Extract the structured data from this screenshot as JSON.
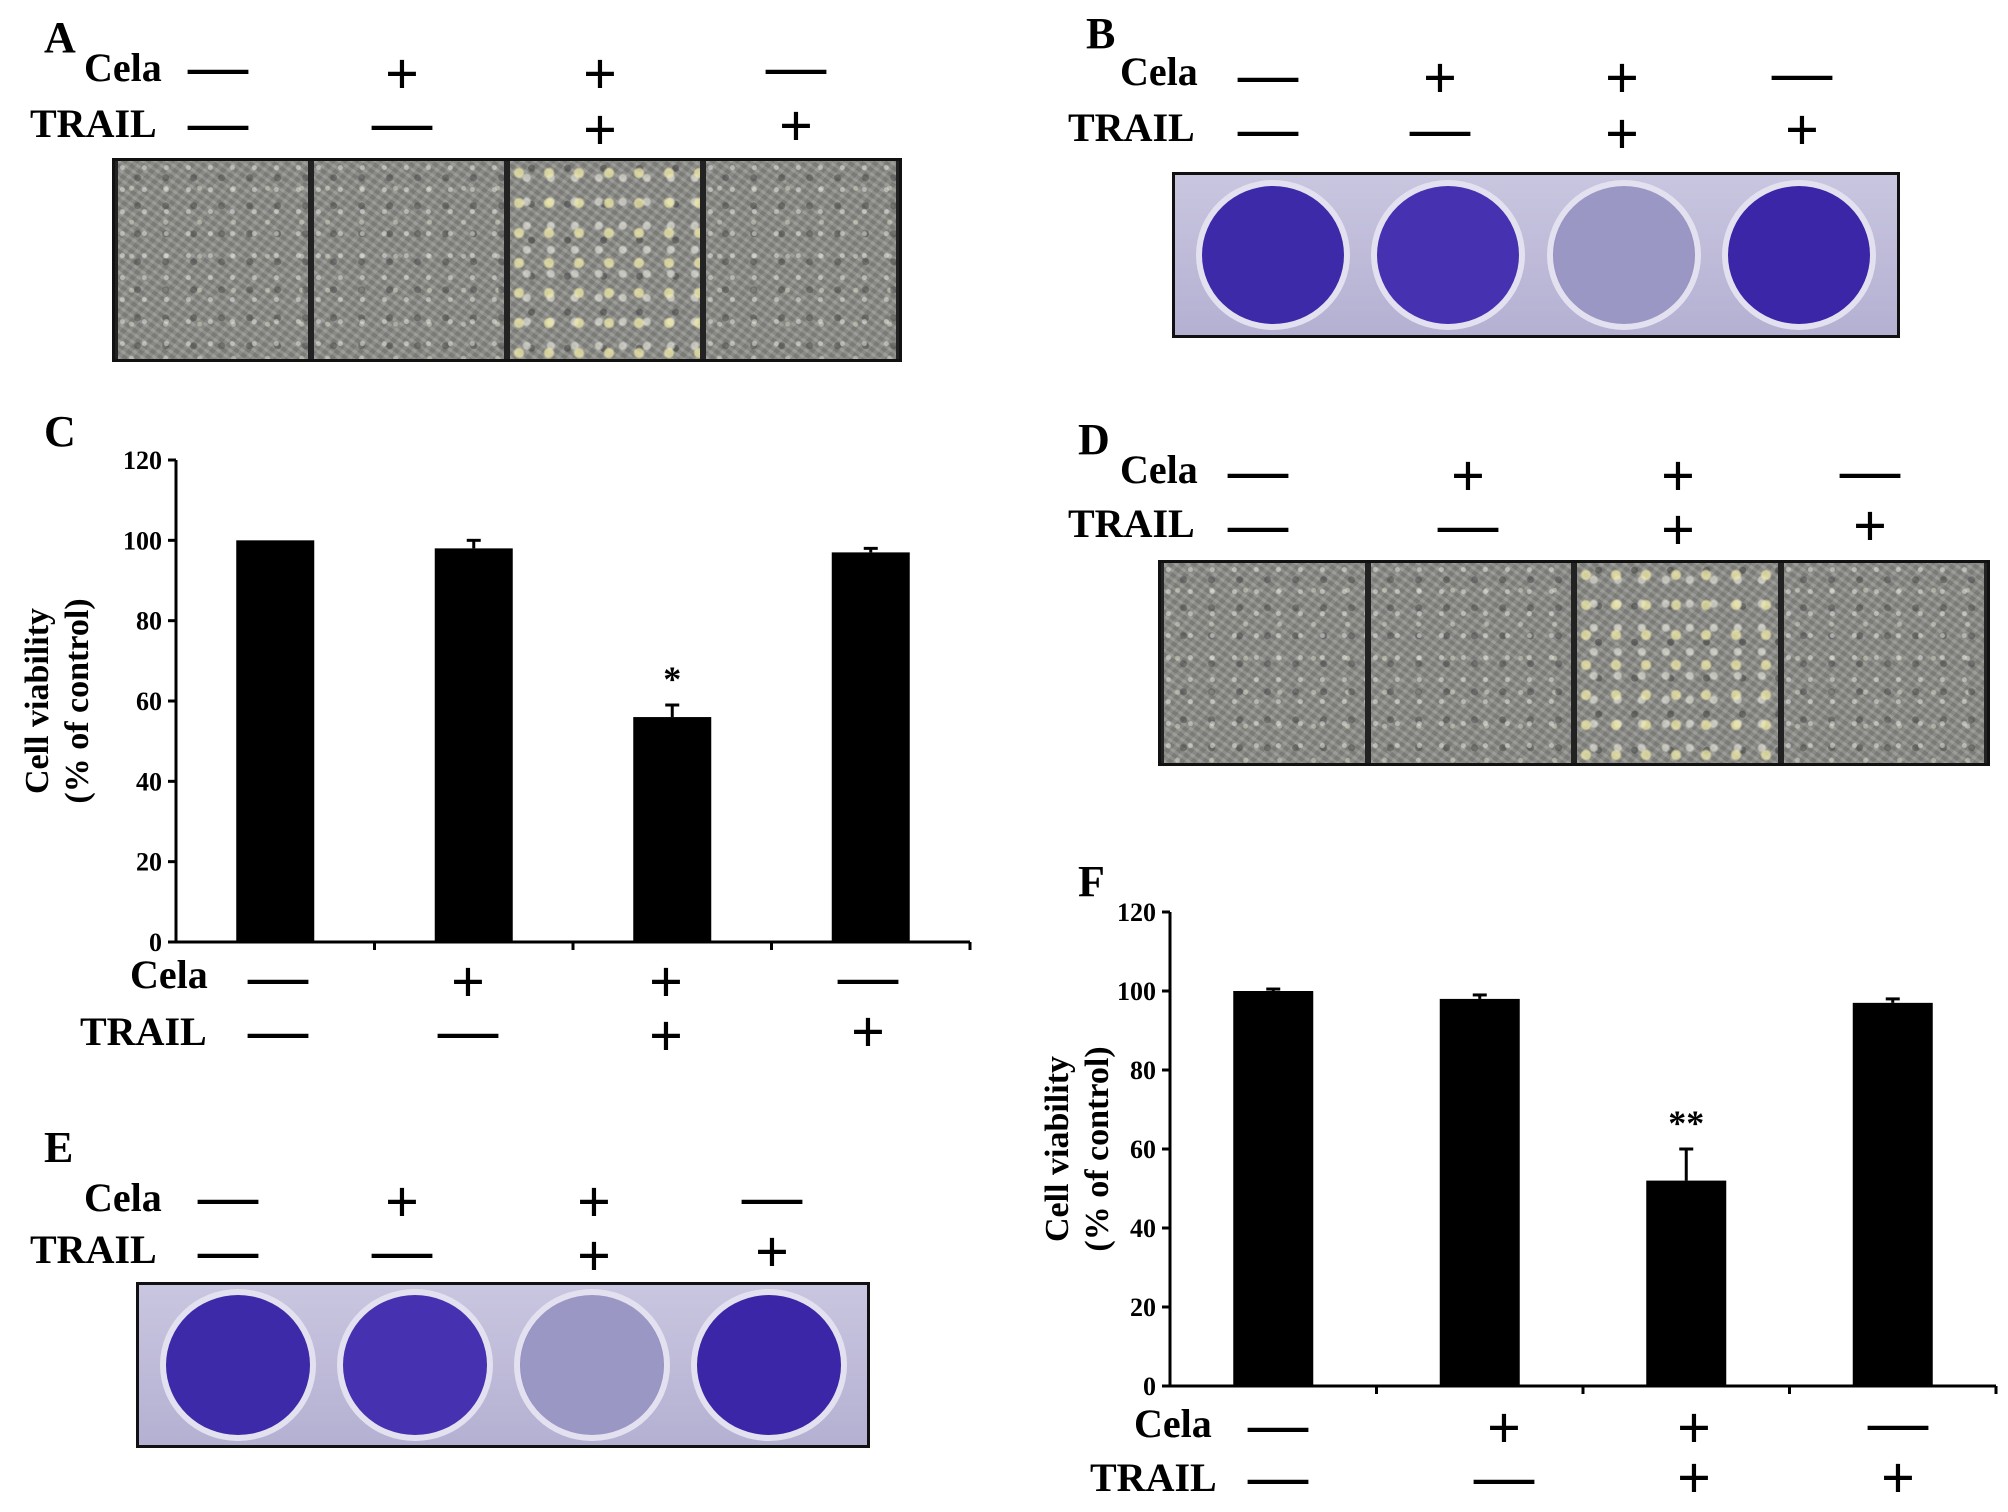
{
  "panel_letters": {
    "A": "A",
    "B": "B",
    "C": "C",
    "D": "D",
    "E": "E",
    "F": "F"
  },
  "row_labels": {
    "cela": "Cela",
    "trail": "TRAIL"
  },
  "treatments": {
    "cela": [
      "—",
      "+",
      "+",
      "—"
    ],
    "trail": [
      "—",
      "—",
      "+",
      "+"
    ]
  },
  "well_colors": [
    "#3d2aa8",
    "#4631b0",
    "#9a97c4",
    "#3a26a6"
  ],
  "chart_data": [
    {
      "panel": "C",
      "type": "bar",
      "categories": [
        "1",
        "2",
        "3",
        "4"
      ],
      "values": [
        100,
        98,
        56,
        97
      ],
      "errors": [
        0,
        2,
        3,
        1
      ],
      "annotations": [
        "",
        "",
        "*",
        ""
      ],
      "ylabel_line1": "Cell viability",
      "ylabel_line2": "(% of control)",
      "ylim": [
        0,
        120
      ],
      "yticks": [
        "0",
        "20",
        "40",
        "60",
        "80",
        "100",
        "120"
      ],
      "bar_color": "#000000"
    },
    {
      "panel": "F",
      "type": "bar",
      "categories": [
        "1",
        "2",
        "3",
        "4"
      ],
      "values": [
        100,
        98,
        52,
        97
      ],
      "errors": [
        0.5,
        1,
        8,
        1
      ],
      "annotations": [
        "",
        "",
        "**",
        ""
      ],
      "ylabel_line1": "Cell viability",
      "ylabel_line2": "(% of control)",
      "ylim": [
        0,
        120
      ],
      "yticks": [
        "0",
        "20",
        "40",
        "60",
        "80",
        "100",
        "120"
      ],
      "bar_color": "#000000"
    }
  ]
}
